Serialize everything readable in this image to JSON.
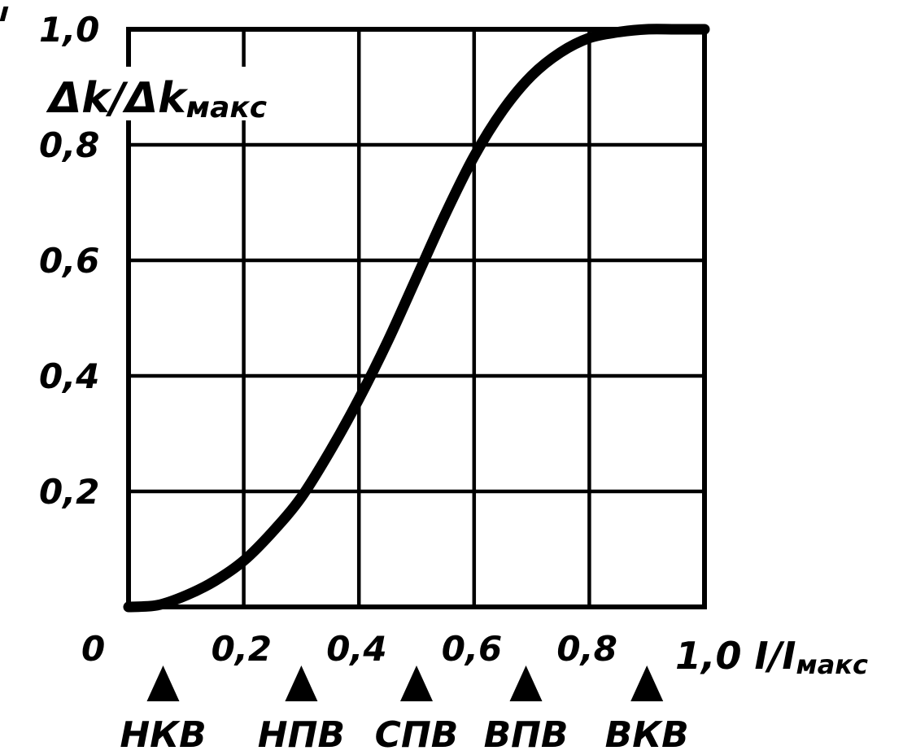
{
  "chart_data": {
    "type": "line",
    "xlabel": {
      "main": "1,0 I/I",
      "sub": "макс"
    },
    "ylabel": {
      "main": "Δk/Δk",
      "sub": "макс"
    },
    "xlim": [
      0,
      1.0
    ],
    "ylim": [
      0,
      1.0
    ],
    "grid": true,
    "x_ticks": [
      {
        "value": 0.2,
        "label": "0,2"
      },
      {
        "value": 0.4,
        "label": "0,4"
      },
      {
        "value": 0.6,
        "label": "0,6"
      },
      {
        "value": 0.8,
        "label": "0,8"
      }
    ],
    "y_ticks": [
      {
        "value": 0.2,
        "label": "0,2"
      },
      {
        "value": 0.4,
        "label": "0,4"
      },
      {
        "value": 0.6,
        "label": "0,6"
      },
      {
        "value": 0.8,
        "label": "0,8"
      },
      {
        "value": 1.0,
        "label": "1,0"
      }
    ],
    "origin_label": "0",
    "series": [
      {
        "x": [
          0.0,
          0.05,
          0.1,
          0.15,
          0.2,
          0.25,
          0.3,
          0.35,
          0.4,
          0.45,
          0.5,
          0.55,
          0.6,
          0.65,
          0.7,
          0.75,
          0.8,
          0.85,
          0.9,
          0.95,
          1.0
        ],
        "y": [
          0.0,
          0.003,
          0.02,
          0.045,
          0.08,
          0.13,
          0.19,
          0.27,
          0.36,
          0.46,
          0.57,
          0.68,
          0.78,
          0.86,
          0.92,
          0.96,
          0.985,
          0.995,
          1.0,
          1.0,
          1.0
        ]
      }
    ],
    "markers": [
      {
        "x": 0.06,
        "label": "НКВ"
      },
      {
        "x": 0.3,
        "label": "НПВ"
      },
      {
        "x": 0.5,
        "label": "СПВ"
      },
      {
        "x": 0.69,
        "label": "ВПВ"
      },
      {
        "x": 0.9,
        "label": "ВКВ"
      }
    ]
  }
}
